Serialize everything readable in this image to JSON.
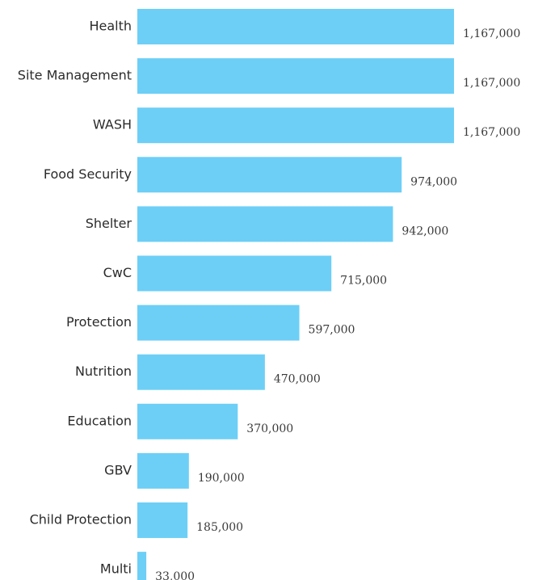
{
  "chart_data": {
    "type": "bar",
    "orientation": "horizontal",
    "categories": [
      "Health",
      "Site Management",
      "WASH",
      "Food Security",
      "Shelter",
      "CwC",
      "Protection",
      "Nutrition",
      "Education",
      "GBV",
      "Child Protection",
      "Multi"
    ],
    "values": [
      1167000,
      1167000,
      1167000,
      974000,
      942000,
      715000,
      597000,
      470000,
      370000,
      190000,
      185000,
      33000
    ],
    "value_labels": [
      "1,167,000",
      "1,167,000",
      "1,167,000",
      "974,000",
      "942,000",
      "715,000",
      "597,000",
      "470,000",
      "370,000",
      "190,000",
      "185,000",
      "33,000"
    ],
    "title": "",
    "xlabel": "",
    "ylabel": "",
    "xlim": [
      0,
      1167000
    ],
    "grid": false,
    "legend": "none",
    "bar_color": "#6dcff6"
  }
}
